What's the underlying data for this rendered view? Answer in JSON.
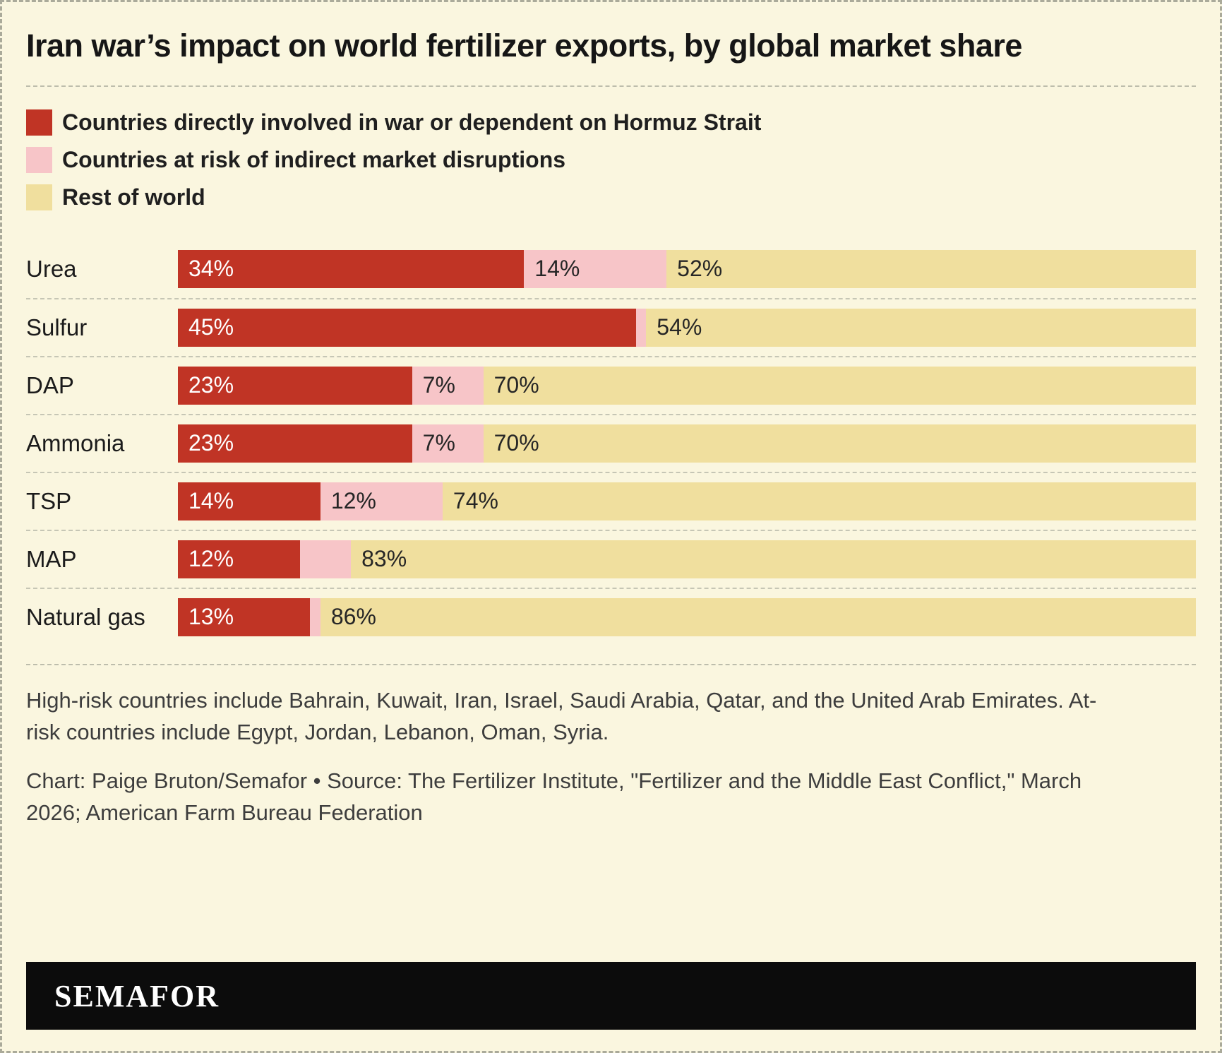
{
  "title": "Iran war’s impact on world fertilizer exports, by global market share",
  "colors": {
    "high_risk": "#c03425",
    "at_risk": "#f7c5c8",
    "rest": "#f0df9e",
    "background": "#faf6df",
    "banner": "#0c0c0c",
    "label_on_red": "#ffffff",
    "label_on_light": "#262626"
  },
  "legend": [
    {
      "key": "high_risk",
      "label": "Countries directly involved in war or dependent on Hormuz Strait"
    },
    {
      "key": "at_risk",
      "label": "Countries at risk of indirect market disruptions"
    },
    {
      "key": "rest",
      "label": "Rest of world"
    }
  ],
  "chart_data": {
    "type": "bar",
    "orientation": "horizontal",
    "stacked": true,
    "title": "Iran war’s impact on world fertilizer exports, by global market share",
    "xlim": [
      0,
      100
    ],
    "unit": "%",
    "categories": [
      "Urea",
      "Sulfur",
      "DAP",
      "Ammonia",
      "TSP",
      "MAP",
      "Natural gas"
    ],
    "series": [
      {
        "name": "Countries directly involved in war or dependent on Hormuz Strait",
        "color_key": "high_risk",
        "values": [
          34,
          45,
          23,
          23,
          14,
          12,
          13
        ],
        "labels": [
          "34%",
          "45%",
          "23%",
          "23%",
          "14%",
          "12%",
          "13%"
        ]
      },
      {
        "name": "Countries at risk of indirect market disruptions",
        "color_key": "at_risk",
        "values": [
          14,
          1,
          7,
          7,
          12,
          5,
          1
        ],
        "labels": [
          "14%",
          "",
          "7%",
          "7%",
          "12%",
          "",
          ""
        ]
      },
      {
        "name": "Rest of world",
        "color_key": "rest",
        "values": [
          52,
          54,
          70,
          70,
          74,
          83,
          86
        ],
        "labels": [
          "52%",
          "54%",
          "70%",
          "70%",
          "74%",
          "83%",
          "86%"
        ]
      }
    ]
  },
  "notes": {
    "countries": "High-risk countries include Bahrain, Kuwait, Iran, Israel, Saudi Arabia, Qatar, and the United Arab Emirates. At-risk countries include Egypt, Jordan, Lebanon, Oman, Syria.",
    "credit": "Chart: Paige Bruton/Semafor • Source: The Fertilizer Institute, \"Fertilizer and the Middle East Conflict,\" March 2026; American Farm Bureau Federation"
  },
  "logo": "SEMAFOR"
}
